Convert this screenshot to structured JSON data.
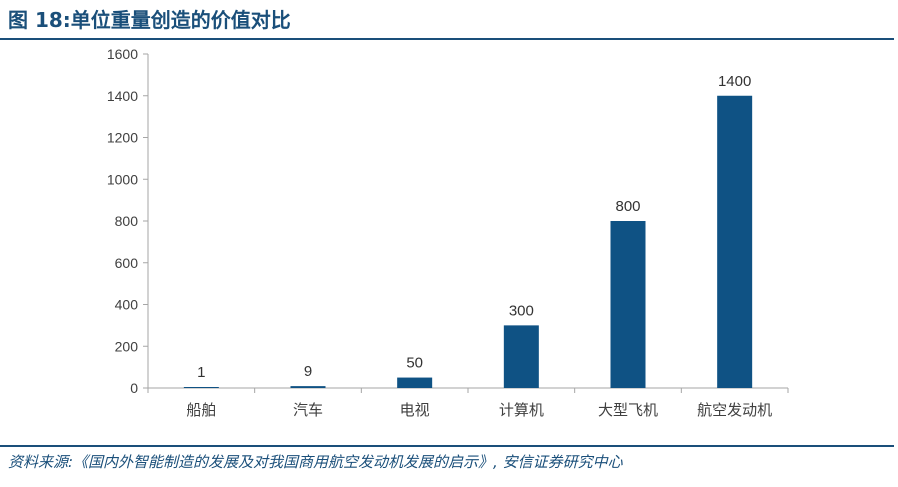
{
  "header": {
    "figure_no": "图 18",
    "separator": ":",
    "title": "单位重量创造的价值对比"
  },
  "footer": {
    "source": "资料来源:《国内外智能制造的发展及对我国商用航空发动机发展的启示》, 安信证券研究中心"
  },
  "colors": {
    "bar": "#0f5284",
    "title": "#1a4f7a",
    "axis": "#a6a6a6"
  },
  "chart_data": {
    "type": "bar",
    "title": "",
    "xlabel": "",
    "ylabel": "",
    "categories": [
      "船舶",
      "汽车",
      "电视",
      "计算机",
      "大型飞机",
      "航空发动机"
    ],
    "values": [
      1,
      9,
      50,
      300,
      800,
      1400
    ],
    "data_labels": [
      "1",
      "9",
      "50",
      "300",
      "800",
      "1400"
    ],
    "ylim": [
      0,
      1600
    ],
    "yticks": [
      0,
      200,
      400,
      600,
      800,
      1000,
      1200,
      1400,
      1600
    ],
    "grid": false,
    "legend": "none"
  }
}
